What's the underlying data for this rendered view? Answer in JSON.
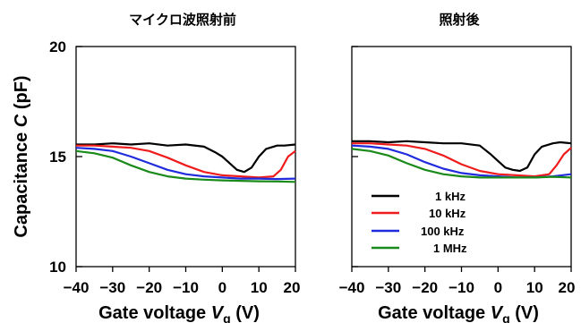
{
  "chart_data": [
    {
      "type": "line",
      "title": "マイクロ波照射前",
      "xlabel_prefix": "Gate voltage ",
      "xlabel_var": "V",
      "xlabel_sub": "g",
      "xlabel_unit": " (V)",
      "ylabel_prefix": "Capacitance ",
      "ylabel_var": "C",
      "ylabel_unit": " (pF)",
      "xlim": [
        -40,
        20
      ],
      "ylim": [
        10,
        20
      ],
      "xticks": [
        -40,
        -30,
        -20,
        -10,
        0,
        10,
        20
      ],
      "xtick_labels": [
        "−40",
        "−30",
        "−20",
        "−10",
        "0",
        "10",
        "20"
      ],
      "yticks": [
        10,
        15,
        20
      ],
      "ytick_labels": [
        "10",
        "15",
        "20"
      ],
      "series": [
        {
          "name": "1 kHz",
          "color": "#000000",
          "x": [
            -40,
            -35,
            -30,
            -25,
            -20,
            -15,
            -10,
            -5,
            -2,
            0,
            2,
            4,
            6,
            8,
            10,
            12,
            15,
            17,
            20
          ],
          "y": [
            15.55,
            15.55,
            15.6,
            15.55,
            15.6,
            15.5,
            15.55,
            15.45,
            15.2,
            15.0,
            14.7,
            14.4,
            14.3,
            14.5,
            15.0,
            15.35,
            15.5,
            15.5,
            15.55
          ]
        },
        {
          "name": "10 kHz",
          "color": "#ee1c1c",
          "x": [
            -40,
            -35,
            -30,
            -25,
            -20,
            -15,
            -10,
            -5,
            0,
            5,
            10,
            14,
            16,
            18,
            20
          ],
          "y": [
            15.5,
            15.5,
            15.45,
            15.4,
            15.25,
            14.95,
            14.6,
            14.3,
            14.15,
            14.1,
            14.05,
            14.1,
            14.4,
            15.0,
            15.25
          ]
        },
        {
          "name": "100 kHz",
          "color": "#1f2bdc",
          "x": [
            -40,
            -35,
            -30,
            -25,
            -20,
            -15,
            -10,
            -5,
            0,
            5,
            10,
            15,
            20
          ],
          "y": [
            15.4,
            15.35,
            15.25,
            15.0,
            14.7,
            14.4,
            14.2,
            14.1,
            14.05,
            14.0,
            14.0,
            13.98,
            14.0
          ]
        },
        {
          "name": "1 MHz",
          "color": "#1a8a1a",
          "x": [
            -40,
            -35,
            -30,
            -25,
            -20,
            -15,
            -10,
            -5,
            0,
            5,
            10,
            15,
            20
          ],
          "y": [
            15.25,
            15.15,
            14.95,
            14.6,
            14.3,
            14.1,
            14.0,
            13.95,
            13.92,
            13.9,
            13.88,
            13.87,
            13.85
          ]
        }
      ]
    },
    {
      "type": "line",
      "title": "照射後",
      "xlabel_prefix": "Gate voltage ",
      "xlabel_var": "V",
      "xlabel_sub": "g",
      "xlabel_unit": " (V)",
      "xlim": [
        -40,
        20
      ],
      "ylim": [
        10,
        20
      ],
      "xticks": [
        -40,
        -30,
        -20,
        -10,
        0,
        10,
        20
      ],
      "xtick_labels": [
        "−40",
        "−30",
        "−20",
        "−10",
        "0",
        "10",
        "20"
      ],
      "yticks": [
        10,
        15,
        20
      ],
      "legend": [
        "1 kHz",
        "10 kHz",
        "100 kHz",
        "1 MHz"
      ],
      "series": [
        {
          "name": "1 kHz",
          "color": "#000000",
          "x": [
            -40,
            -35,
            -30,
            -25,
            -20,
            -15,
            -10,
            -5,
            -2,
            0,
            2,
            4,
            6,
            8,
            10,
            12,
            15,
            17,
            20
          ],
          "y": [
            15.7,
            15.7,
            15.65,
            15.7,
            15.65,
            15.6,
            15.6,
            15.5,
            15.1,
            14.8,
            14.5,
            14.4,
            14.35,
            14.5,
            15.1,
            15.45,
            15.6,
            15.65,
            15.6
          ]
        },
        {
          "name": "10 kHz",
          "color": "#ee1c1c",
          "x": [
            -40,
            -35,
            -30,
            -25,
            -20,
            -15,
            -10,
            -5,
            0,
            5,
            10,
            14,
            16,
            18,
            20
          ],
          "y": [
            15.6,
            15.6,
            15.55,
            15.5,
            15.35,
            15.05,
            14.65,
            14.35,
            14.2,
            14.15,
            14.1,
            14.2,
            14.6,
            15.1,
            15.4
          ]
        },
        {
          "name": "100 kHz",
          "color": "#1f2bdc",
          "x": [
            -40,
            -35,
            -30,
            -25,
            -20,
            -15,
            -10,
            -5,
            0,
            5,
            10,
            15,
            20
          ],
          "y": [
            15.5,
            15.45,
            15.35,
            15.1,
            14.75,
            14.45,
            14.25,
            14.15,
            14.1,
            14.05,
            14.05,
            14.1,
            14.2
          ]
        },
        {
          "name": "1 MHz",
          "color": "#1a8a1a",
          "x": [
            -40,
            -35,
            -30,
            -25,
            -20,
            -15,
            -10,
            -5,
            0,
            5,
            10,
            15,
            20
          ],
          "y": [
            15.35,
            15.25,
            15.05,
            14.7,
            14.4,
            14.2,
            14.1,
            14.05,
            14.05,
            14.05,
            14.05,
            14.08,
            14.05
          ]
        }
      ]
    }
  ]
}
